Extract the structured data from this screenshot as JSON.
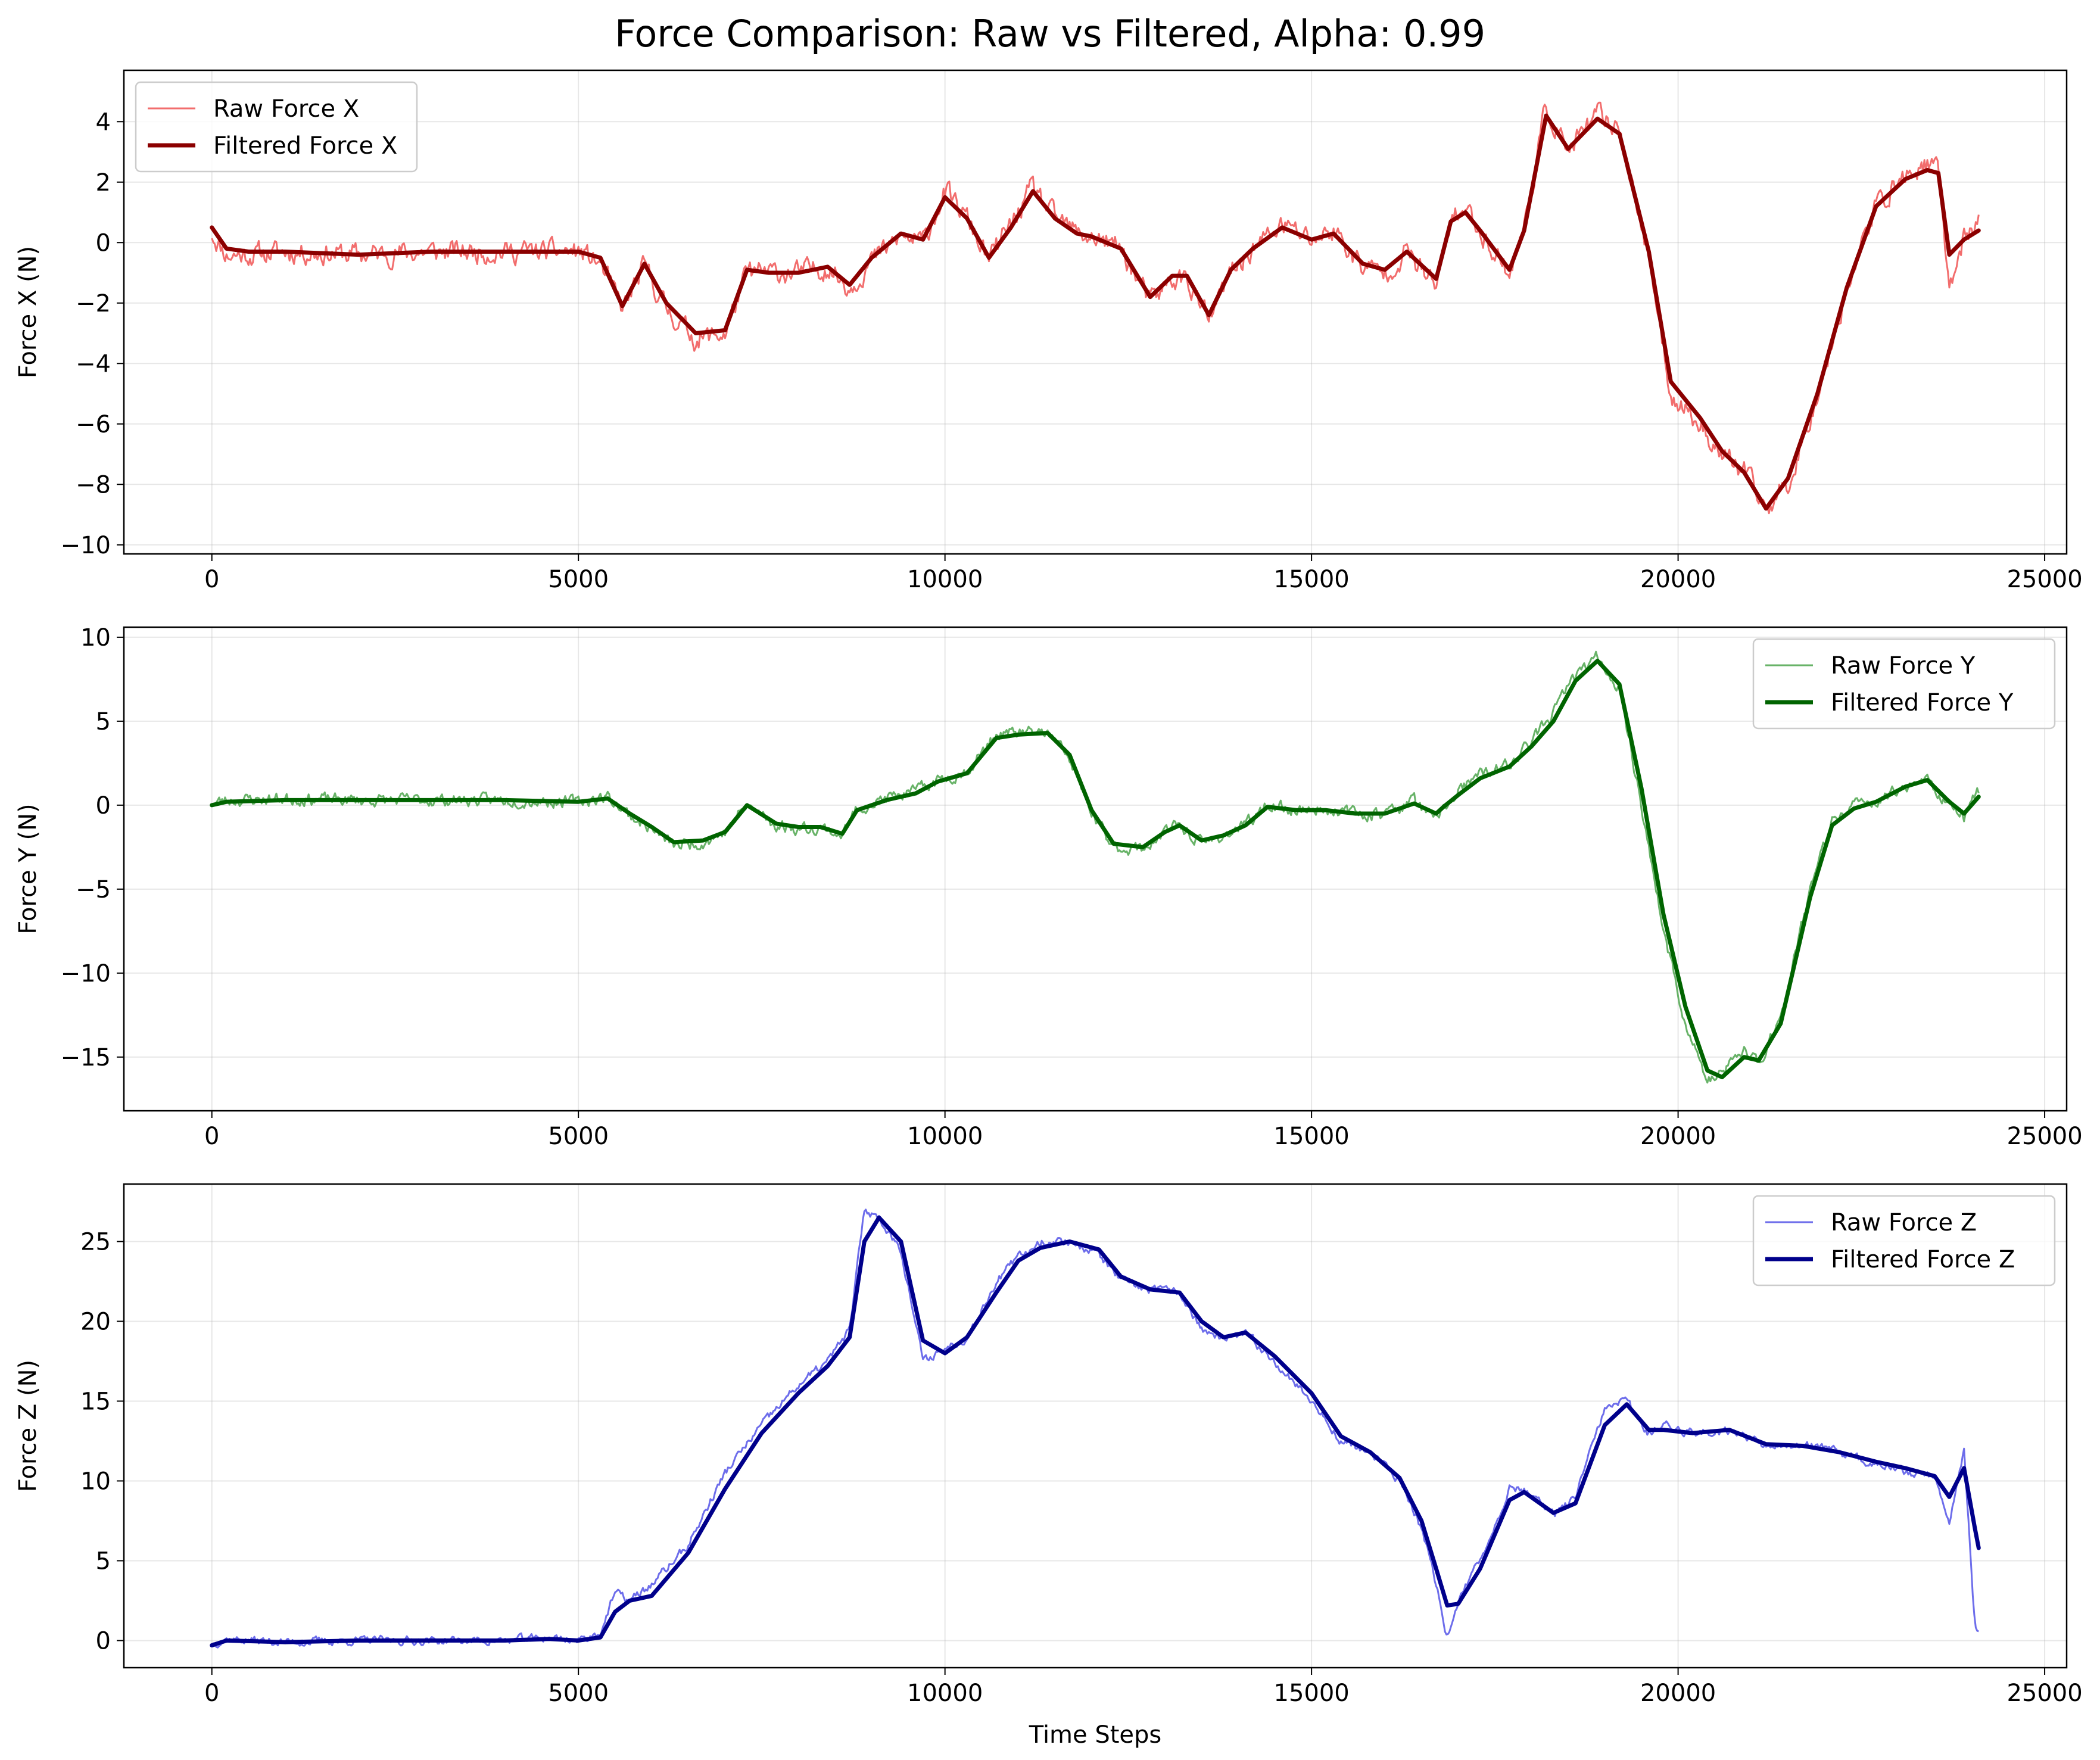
{
  "figure": {
    "title": "Force Comparison: Raw vs Filtered, Alpha: 0.99"
  },
  "chart_data": [
    {
      "type": "line",
      "name": "force-x",
      "ylabel": "Force X (N)",
      "xlabel": "",
      "xlim": [
        -1200,
        25300
      ],
      "ylim": [
        -10.3,
        5.7
      ],
      "xticks": [
        0,
        5000,
        10000,
        15000,
        20000,
        25000
      ],
      "yticks": [
        -10,
        -8,
        -6,
        -4,
        -2,
        0,
        2,
        4
      ],
      "grid": true,
      "legend_position": "top-left",
      "series": [
        {
          "name": "Raw Force X",
          "role": "raw",
          "color": "#f05454",
          "noise": 0.3,
          "seed": 11,
          "x": [
            0,
            200,
            500,
            1000,
            2000,
            3000,
            4000,
            5000,
            5300,
            5600,
            5900,
            6200,
            6600,
            7000,
            7300,
            7600,
            8000,
            8400,
            8700,
            9000,
            9400,
            9700,
            10000,
            10300,
            10600,
            10900,
            11200,
            11500,
            11800,
            12000,
            12400,
            12800,
            13100,
            13300,
            13600,
            13900,
            14200,
            14600,
            15000,
            15300,
            15700,
            16000,
            16300,
            16700,
            16900,
            17100,
            17300,
            17700,
            17900,
            18200,
            18500,
            18900,
            19200,
            19600,
            19900,
            20300,
            20600,
            20900,
            21200,
            21500,
            21900,
            22300,
            22700,
            23100,
            23400,
            23550,
            23700,
            23900,
            24100
          ],
          "y": [
            0.3,
            -0.4,
            -0.4,
            -0.3,
            -0.4,
            -0.3,
            -0.3,
            -0.3,
            -0.7,
            -2.2,
            -0.8,
            -2.2,
            -3.2,
            -3.0,
            -1.0,
            -1.0,
            -1.0,
            -0.8,
            -1.5,
            -0.6,
            0.2,
            0.0,
            1.7,
            0.8,
            -0.6,
            0.6,
            1.8,
            0.8,
            0.3,
            0.2,
            -0.2,
            -2.0,
            -1.2,
            -1.2,
            -2.6,
            -1.0,
            -0.2,
            0.6,
            0.1,
            0.4,
            -0.8,
            -1.0,
            -0.3,
            -1.5,
            0.8,
            1.1,
            0.4,
            -1.0,
            0.5,
            4.5,
            3.0,
            4.2,
            3.8,
            -0.5,
            -5.0,
            -6.0,
            -7.0,
            -7.6,
            -8.8,
            -8.0,
            -5.0,
            -1.5,
            1.2,
            2.2,
            2.6,
            2.3,
            -1.5,
            0.2,
            0.6
          ]
        },
        {
          "name": "Filtered Force X",
          "role": "filtered",
          "color": "#8b0000",
          "x": [
            0,
            200,
            500,
            1000,
            2000,
            3000,
            4000,
            5000,
            5300,
            5600,
            5900,
            6200,
            6600,
            7000,
            7300,
            7600,
            8000,
            8400,
            8700,
            9000,
            9400,
            9700,
            10000,
            10300,
            10600,
            10900,
            11200,
            11500,
            11800,
            12000,
            12400,
            12800,
            13100,
            13300,
            13600,
            13900,
            14200,
            14600,
            15000,
            15300,
            15700,
            16000,
            16300,
            16700,
            16900,
            17100,
            17300,
            17700,
            17900,
            18200,
            18500,
            18900,
            19200,
            19600,
            19900,
            20300,
            20600,
            20900,
            21200,
            21500,
            21900,
            22300,
            22700,
            23100,
            23400,
            23550,
            23700,
            23900,
            24100
          ],
          "y": [
            0.5,
            -0.2,
            -0.3,
            -0.3,
            -0.4,
            -0.3,
            -0.3,
            -0.3,
            -0.5,
            -2.1,
            -0.7,
            -2.0,
            -3.0,
            -2.9,
            -0.9,
            -1.0,
            -1.0,
            -0.8,
            -1.4,
            -0.5,
            0.3,
            0.1,
            1.5,
            0.8,
            -0.5,
            0.5,
            1.7,
            0.8,
            0.3,
            0.2,
            -0.2,
            -1.8,
            -1.1,
            -1.1,
            -2.4,
            -0.9,
            -0.2,
            0.5,
            0.1,
            0.3,
            -0.7,
            -0.9,
            -0.3,
            -1.2,
            0.7,
            1.0,
            0.4,
            -0.9,
            0.4,
            4.2,
            3.1,
            4.1,
            3.6,
            -0.3,
            -4.6,
            -5.8,
            -6.9,
            -7.6,
            -8.8,
            -7.8,
            -5.0,
            -1.5,
            1.2,
            2.1,
            2.4,
            2.3,
            -0.4,
            0.1,
            0.4
          ]
        }
      ]
    },
    {
      "type": "line",
      "name": "force-y",
      "ylabel": "Force Y (N)",
      "xlabel": "",
      "xlim": [
        -1200,
        25300
      ],
      "ylim": [
        -18.2,
        10.6
      ],
      "xticks": [
        0,
        5000,
        10000,
        15000,
        20000,
        25000
      ],
      "yticks": [
        -15,
        -10,
        -5,
        0,
        5,
        10
      ],
      "grid": true,
      "legend_position": "top-right",
      "series": [
        {
          "name": "Raw Force Y",
          "role": "raw",
          "color": "#4ea64e",
          "noise": 0.3,
          "seed": 23,
          "x": [
            0,
            200,
            1000,
            2000,
            3000,
            4000,
            5000,
            5400,
            5700,
            6000,
            6300,
            6700,
            7000,
            7300,
            7700,
            8000,
            8300,
            8600,
            8800,
            9200,
            9600,
            9900,
            10300,
            10700,
            11000,
            11400,
            11700,
            12000,
            12300,
            12700,
            13000,
            13200,
            13500,
            13800,
            14100,
            14400,
            14800,
            15200,
            15600,
            16000,
            16400,
            16700,
            16800,
            17000,
            17300,
            17700,
            18000,
            18300,
            18600,
            18900,
            19200,
            19500,
            19800,
            20100,
            20400,
            20600,
            20900,
            21100,
            21400,
            21800,
            22100,
            22400,
            22700,
            23100,
            23400,
            23700,
            23900,
            24100
          ],
          "y": [
            0.1,
            0.3,
            0.4,
            0.3,
            0.3,
            0.3,
            0.2,
            0.5,
            -0.6,
            -1.4,
            -2.4,
            -2.2,
            -1.6,
            0.0,
            -1.2,
            -1.4,
            -1.3,
            -1.8,
            -0.2,
            0.4,
            0.8,
            1.5,
            2.0,
            4.2,
            4.3,
            4.3,
            2.8,
            -0.5,
            -2.5,
            -2.6,
            -1.6,
            -1.2,
            -2.3,
            -1.8,
            -1.2,
            0.0,
            -0.3,
            -0.2,
            -0.5,
            -0.5,
            0.3,
            -1.0,
            -0.2,
            0.8,
            1.8,
            2.4,
            3.8,
            5.5,
            7.8,
            8.8,
            7.0,
            0.0,
            -7.5,
            -13.0,
            -16.5,
            -16.0,
            -14.5,
            -15.5,
            -12.5,
            -5.0,
            -1.0,
            0.0,
            0.2,
            1.2,
            1.5,
            0.0,
            -0.8,
            0.8
          ]
        },
        {
          "name": "Filtered Force Y",
          "role": "filtered",
          "color": "#006400",
          "x": [
            0,
            200,
            1000,
            2000,
            3000,
            4000,
            5000,
            5400,
            5700,
            6000,
            6300,
            6700,
            7000,
            7300,
            7700,
            8000,
            8300,
            8600,
            8800,
            9200,
            9600,
            9900,
            10300,
            10700,
            11000,
            11400,
            11700,
            12000,
            12300,
            12700,
            13000,
            13200,
            13500,
            13800,
            14100,
            14400,
            14800,
            15200,
            15600,
            16000,
            16400,
            16700,
            16800,
            17000,
            17300,
            17700,
            18000,
            18300,
            18600,
            18900,
            19200,
            19500,
            19800,
            20100,
            20400,
            20600,
            20900,
            21100,
            21400,
            21800,
            22100,
            22400,
            22700,
            23100,
            23400,
            23700,
            23900,
            24100
          ],
          "y": [
            0.0,
            0.2,
            0.3,
            0.3,
            0.3,
            0.3,
            0.2,
            0.4,
            -0.5,
            -1.3,
            -2.2,
            -2.1,
            -1.6,
            0.0,
            -1.1,
            -1.3,
            -1.3,
            -1.7,
            -0.3,
            0.3,
            0.7,
            1.4,
            1.9,
            4.0,
            4.2,
            4.3,
            3.0,
            -0.3,
            -2.3,
            -2.5,
            -1.6,
            -1.2,
            -2.1,
            -1.8,
            -1.2,
            -0.1,
            -0.3,
            -0.3,
            -0.5,
            -0.5,
            0.1,
            -0.5,
            -0.1,
            0.6,
            1.6,
            2.3,
            3.5,
            5.0,
            7.4,
            8.6,
            7.2,
            1.0,
            -6.5,
            -12.0,
            -15.8,
            -16.2,
            -15.0,
            -15.2,
            -13.0,
            -5.5,
            -1.2,
            -0.2,
            0.2,
            1.1,
            1.5,
            0.2,
            -0.5,
            0.5
          ]
        }
      ]
    },
    {
      "type": "line",
      "name": "force-z",
      "ylabel": "Force Z (N)",
      "xlabel": "Time Steps",
      "xlim": [
        -1200,
        25300
      ],
      "ylim": [
        -1.7,
        28.6
      ],
      "xticks": [
        0,
        5000,
        10000,
        15000,
        20000,
        25000
      ],
      "yticks": [
        0,
        5,
        10,
        15,
        20,
        25
      ],
      "grid": true,
      "legend_position": "top-right",
      "series": [
        {
          "name": "Raw Force Z",
          "role": "raw",
          "color": "#5454e8",
          "noise": 0.22,
          "seed": 37,
          "x": [
            0,
            200,
            1000,
            2000,
            3000,
            4000,
            4600,
            5000,
            5300,
            5500,
            5700,
            6000,
            6500,
            7000,
            7500,
            8000,
            8400,
            8700,
            8900,
            9100,
            9400,
            9700,
            10000,
            10300,
            10700,
            11000,
            11300,
            11700,
            12100,
            12400,
            12800,
            13200,
            13500,
            13800,
            14100,
            14500,
            15000,
            15400,
            15800,
            16200,
            16500,
            16700,
            16850,
            17000,
            17300,
            17700,
            17900,
            18300,
            18600,
            19000,
            19300,
            19600,
            19800,
            20200,
            20700,
            21200,
            21700,
            22200,
            22700,
            23100,
            23500,
            23700,
            23900,
            24050,
            24100
          ],
          "y": [
            -0.2,
            0.1,
            -0.1,
            0.0,
            0.0,
            0.0,
            0.2,
            0.0,
            0.5,
            3.0,
            2.5,
            3.5,
            6.0,
            10.5,
            13.5,
            16.0,
            17.5,
            19.5,
            27.0,
            26.5,
            24.5,
            17.5,
            18.3,
            19.0,
            22.5,
            24.0,
            25.0,
            25.0,
            24.2,
            22.5,
            22.0,
            21.8,
            19.5,
            18.8,
            19.2,
            17.5,
            15.0,
            12.5,
            11.8,
            10.0,
            7.0,
            3.5,
            0.2,
            2.5,
            5.0,
            9.5,
            9.5,
            7.8,
            9.0,
            14.5,
            15.0,
            13.0,
            13.5,
            13.0,
            13.2,
            12.3,
            12.3,
            11.8,
            11.0,
            10.6,
            10.3,
            7.5,
            12.0,
            0.8,
            0.7
          ]
        },
        {
          "name": "Filtered Force Z",
          "role": "filtered",
          "color": "#00008b",
          "x": [
            0,
            200,
            1000,
            2000,
            3000,
            4000,
            4600,
            5000,
            5300,
            5500,
            5700,
            6000,
            6500,
            7000,
            7500,
            8000,
            8400,
            8700,
            8900,
            9100,
            9400,
            9700,
            10000,
            10300,
            10700,
            11000,
            11300,
            11700,
            12100,
            12400,
            12800,
            13200,
            13500,
            13800,
            14100,
            14500,
            15000,
            15400,
            15800,
            16200,
            16500,
            16700,
            16850,
            17000,
            17300,
            17700,
            17900,
            18300,
            18600,
            19000,
            19300,
            19600,
            19800,
            20200,
            20700,
            21200,
            21700,
            22200,
            22700,
            23100,
            23500,
            23700,
            23900,
            24050,
            24100
          ],
          "y": [
            -0.3,
            0.0,
            -0.1,
            0.0,
            0.0,
            0.0,
            0.1,
            0.0,
            0.2,
            1.8,
            2.5,
            2.8,
            5.5,
            9.5,
            13.0,
            15.5,
            17.2,
            19.0,
            25.0,
            26.5,
            25.0,
            18.8,
            18.0,
            19.0,
            21.8,
            23.8,
            24.6,
            25.0,
            24.5,
            22.8,
            22.0,
            21.8,
            20.0,
            19.0,
            19.3,
            17.8,
            15.5,
            12.8,
            11.8,
            10.2,
            7.5,
            4.5,
            2.2,
            2.3,
            4.5,
            8.8,
            9.3,
            8.0,
            8.6,
            13.5,
            14.8,
            13.2,
            13.2,
            13.0,
            13.2,
            12.3,
            12.2,
            11.8,
            11.2,
            10.8,
            10.3,
            9.0,
            10.8,
            7.0,
            5.8
          ]
        }
      ]
    }
  ]
}
